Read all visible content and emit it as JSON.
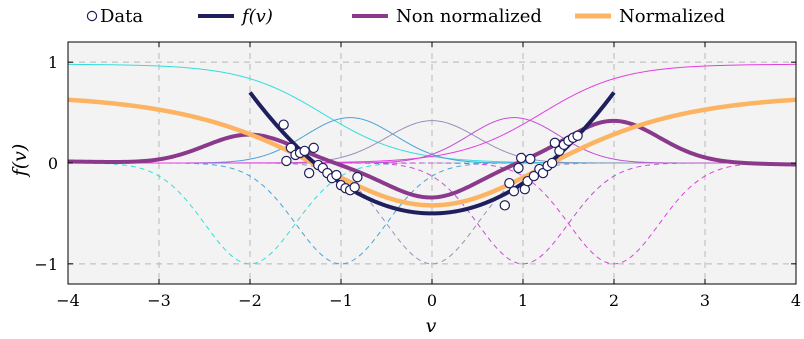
{
  "chart_data": {
    "type": "line",
    "xlabel": "v",
    "ylabel": "f(v)",
    "xlim": [
      -4,
      4
    ],
    "ylim": [
      -1.2,
      1.2
    ],
    "x_ticks": [
      -4,
      -3,
      -2,
      -1,
      0,
      1,
      2,
      3,
      4
    ],
    "x_tick_labels": [
      "−4",
      "−3",
      "−2",
      "−1",
      "0",
      "1",
      "2",
      "3",
      "4"
    ],
    "y_ticks": [
      -1,
      0,
      1
    ],
    "y_tick_labels": [
      "−1",
      "0",
      "1"
    ],
    "grid": true,
    "legend_position": "top",
    "legend": [
      {
        "label": "Data",
        "kind": "marker",
        "color": "#1f1f5e"
      },
      {
        "label": "f(v)",
        "kind": "line",
        "color": "#1f1f5e"
      },
      {
        "label": "Non normalized",
        "kind": "line",
        "color": "#8b3a8b"
      },
      {
        "label": "Normalized",
        "kind": "line",
        "color": "#fdb462"
      }
    ],
    "series": [
      {
        "name": "Data",
        "style": "markers",
        "color": "#1f1f5e",
        "points": [
          [
            -1.63,
            0.38
          ],
          [
            -1.6,
            0.02
          ],
          [
            -1.55,
            0.15
          ],
          [
            -1.5,
            0.08
          ],
          [
            -1.45,
            0.1
          ],
          [
            -1.4,
            0.12
          ],
          [
            -1.3,
            0.15
          ],
          [
            -1.35,
            -0.1
          ],
          [
            -1.25,
            -0.02
          ],
          [
            -1.2,
            -0.05
          ],
          [
            -1.15,
            -0.1
          ],
          [
            -1.1,
            -0.15
          ],
          [
            -1.05,
            -0.12
          ],
          [
            -1.0,
            -0.22
          ],
          [
            -0.95,
            -0.25
          ],
          [
            -0.9,
            -0.27
          ],
          [
            -0.85,
            -0.24
          ],
          [
            -0.82,
            -0.14
          ],
          [
            0.8,
            -0.42
          ],
          [
            0.85,
            -0.2
          ],
          [
            0.9,
            -0.28
          ],
          [
            0.95,
            -0.05
          ],
          [
            0.98,
            0.05
          ],
          [
            1.02,
            -0.26
          ],
          [
            1.05,
            -0.18
          ],
          [
            1.08,
            0.04
          ],
          [
            1.12,
            -0.13
          ],
          [
            1.18,
            -0.06
          ],
          [
            1.22,
            -0.1
          ],
          [
            1.27,
            -0.03
          ],
          [
            1.32,
            0.0
          ],
          [
            1.35,
            0.2
          ],
          [
            1.4,
            0.12
          ],
          [
            1.45,
            0.18
          ],
          [
            1.5,
            0.22
          ],
          [
            1.55,
            0.25
          ],
          [
            1.6,
            0.27
          ]
        ]
      },
      {
        "name": "f(v)",
        "style": "thick-line",
        "color": "#1f1f5e",
        "formula": "0.3*v^2 - 0.5",
        "domain": [
          -2,
          2
        ]
      },
      {
        "name": "Non normalized",
        "style": "thick-line",
        "color": "#8b3a8b",
        "formula": "sum of positive basis minus sum of negative basis",
        "domain": [
          -4,
          4
        ]
      },
      {
        "name": "Normalized",
        "style": "thick-line",
        "color": "#fdb462",
        "formula": "normalized basis weighted sum",
        "domain": [
          -4,
          4
        ]
      }
    ],
    "basis_centers": [
      -2,
      -1,
      0,
      1,
      2
    ],
    "basis_width": 0.7,
    "basis_colors": {
      "positive": [
        "#33dddd",
        "#4aa3d8",
        "#9b8fb8",
        "#c050d0",
        "#e040e0"
      ],
      "negative": [
        "#33dddd",
        "#4aa3d8",
        "#9b8fb8",
        "#c050d0",
        "#e040e0"
      ]
    }
  }
}
